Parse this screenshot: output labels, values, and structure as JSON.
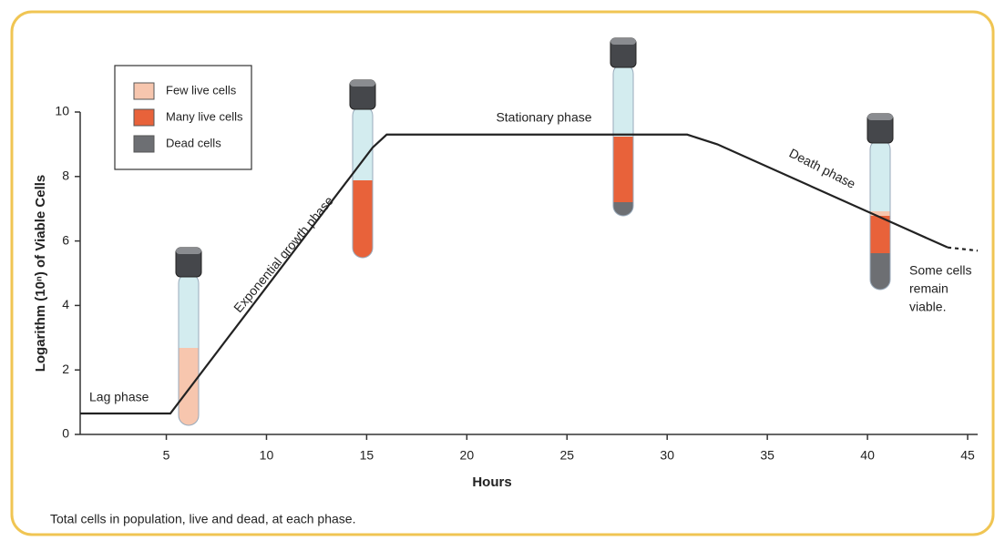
{
  "chart_data": {
    "type": "line",
    "y_label": "Logarithm (10ⁿ) of Viable Cells",
    "x_label": "Hours",
    "caption": "Total cells in population, live and dead, at each phase.",
    "xlim": [
      0.7,
      45.5
    ],
    "xticks": [
      5,
      10,
      15,
      20,
      25,
      30,
      35,
      40,
      45
    ],
    "ylim": [
      0,
      10
    ],
    "yticks": [
      0,
      2,
      4,
      6,
      8,
      10
    ],
    "color": "#222222",
    "lines": [
      {
        "x": [
          0.7,
          5.2,
          15.3,
          16,
          31,
          32.5,
          44
        ],
        "values": [
          0.65,
          0.65,
          8.9,
          9.3,
          9.3,
          9.0,
          5.8
        ],
        "dashed": false
      },
      {
        "x": [
          44,
          45.5
        ],
        "values": [
          5.8,
          5.7
        ],
        "dashed": true
      }
    ],
    "legend": [
      {
        "label": "Few live cells",
        "color": "#f7c6ae"
      },
      {
        "label": "Many live cells",
        "color": "#e8623a"
      },
      {
        "label": "Dead cells",
        "color": "#6d6f73"
      }
    ],
    "annotations": {
      "lag": "Lag phase",
      "exponential": "Exponential growth phase",
      "stationary": "Stationary phase",
      "death": "Death phase",
      "viable": [
        "Some cells",
        "remain",
        "viable."
      ]
    }
  }
}
